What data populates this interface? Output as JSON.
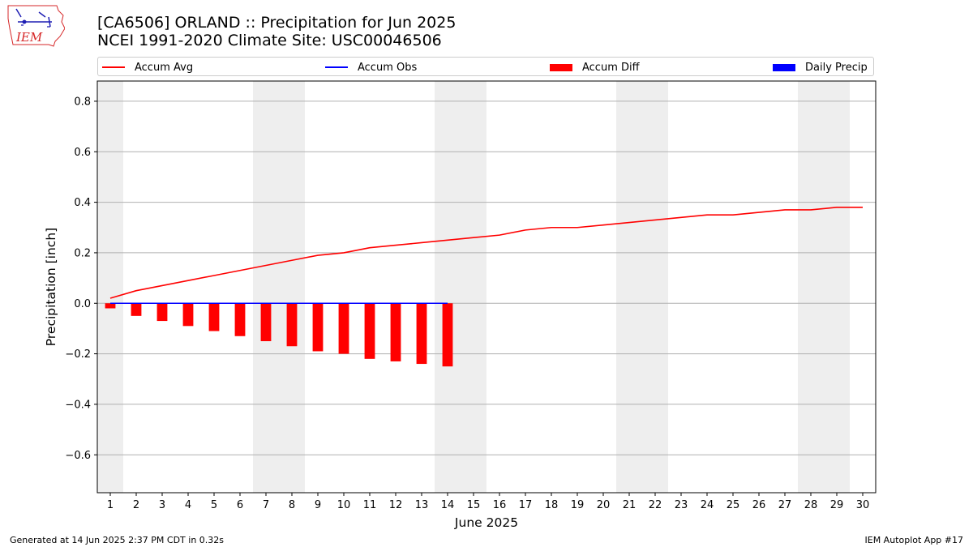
{
  "header": {
    "logo_text": "IEM",
    "title_line1": "[CA6506] ORLAND :: Precipitation for Jun 2025",
    "title_line2": "NCEI 1991-2020 Climate Site: USC00046506"
  },
  "footer": {
    "generated": "Generated at 14 Jun 2025 2:37 PM CDT in 0.32s",
    "app": "IEM Autoplot App #17"
  },
  "chart_data": {
    "type": "line",
    "xlabel": "June 2025",
    "ylabel": "Precipitation [inch]",
    "ylim": [
      -0.75,
      0.88
    ],
    "xlim": [
      0.5,
      30.5
    ],
    "yticks": [
      -0.6,
      -0.4,
      -0.2,
      0.0,
      0.2,
      0.4,
      0.6,
      0.8
    ],
    "ytick_labels": [
      "−0.6",
      "−0.4",
      "−0.2",
      "0.0",
      "0.2",
      "0.4",
      "0.6",
      "0.8"
    ],
    "days": [
      1,
      2,
      3,
      4,
      5,
      6,
      7,
      8,
      9,
      10,
      11,
      12,
      13,
      14,
      15,
      16,
      17,
      18,
      19,
      20,
      21,
      22,
      23,
      24,
      25,
      26,
      27,
      28,
      29,
      30
    ],
    "weekend_days": [
      1,
      7,
      8,
      14,
      15,
      21,
      22,
      28,
      29
    ],
    "grid": "horizontal",
    "legend_placement": "top",
    "legend": [
      {
        "label": "Accum Avg",
        "kind": "line",
        "color": "#ff0000"
      },
      {
        "label": "Accum Obs",
        "kind": "line",
        "color": "#0000ff"
      },
      {
        "label": "Accum Diff",
        "kind": "bar",
        "color": "#ff0000"
      },
      {
        "label": "Daily Precip",
        "kind": "bar",
        "color": "#0000ff"
      }
    ],
    "series": [
      {
        "name": "Accum Avg",
        "type": "line",
        "color": "#ff0000",
        "x": [
          1,
          2,
          3,
          4,
          5,
          6,
          7,
          8,
          9,
          10,
          11,
          12,
          13,
          14,
          15,
          16,
          17,
          18,
          19,
          20,
          21,
          22,
          23,
          24,
          25,
          26,
          27,
          28,
          29,
          30
        ],
        "values": [
          0.02,
          0.05,
          0.07,
          0.09,
          0.11,
          0.13,
          0.15,
          0.17,
          0.19,
          0.2,
          0.22,
          0.23,
          0.24,
          0.25,
          0.26,
          0.27,
          0.29,
          0.3,
          0.3,
          0.31,
          0.32,
          0.33,
          0.34,
          0.35,
          0.35,
          0.36,
          0.37,
          0.37,
          0.38,
          0.38
        ]
      },
      {
        "name": "Accum Obs",
        "type": "line",
        "color": "#0000ff",
        "x": [
          1,
          2,
          3,
          4,
          5,
          6,
          7,
          8,
          9,
          10,
          11,
          12,
          13,
          14
        ],
        "values": [
          0,
          0,
          0,
          0,
          0,
          0,
          0,
          0,
          0,
          0,
          0,
          0,
          0,
          0
        ]
      },
      {
        "name": "Accum Diff",
        "type": "bar",
        "color": "#ff0000",
        "x": [
          1,
          2,
          3,
          4,
          5,
          6,
          7,
          8,
          9,
          10,
          11,
          12,
          13,
          14
        ],
        "values": [
          -0.02,
          -0.05,
          -0.07,
          -0.09,
          -0.11,
          -0.13,
          -0.15,
          -0.17,
          -0.19,
          -0.2,
          -0.22,
          -0.23,
          -0.24,
          -0.25
        ]
      },
      {
        "name": "Daily Precip",
        "type": "bar",
        "color": "#0000ff",
        "x": [
          1,
          2,
          3,
          4,
          5,
          6,
          7,
          8,
          9,
          10,
          11,
          12,
          13,
          14
        ],
        "values": [
          0,
          0,
          0,
          0,
          0,
          0,
          0,
          0,
          0,
          0,
          0,
          0,
          0,
          0
        ]
      }
    ]
  },
  "colors": {
    "weekend_band": "#eeeeee",
    "grid": "#b0b0b0",
    "accum_avg": "#ff0000",
    "accum_obs": "#0000ff",
    "daily_precip": "#0000ff"
  }
}
